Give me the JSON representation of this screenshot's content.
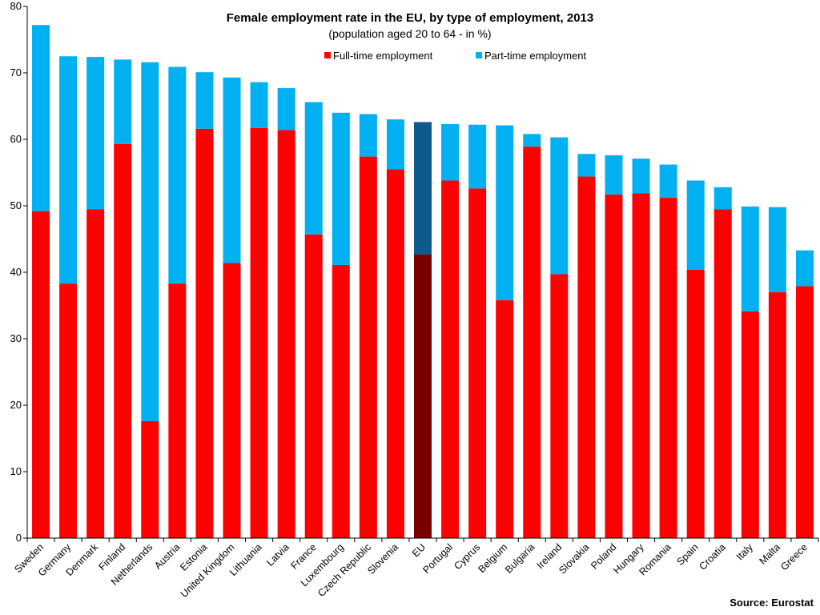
{
  "chart_data": {
    "type": "bar",
    "stacked": true,
    "title": "Female employment rate in the EU, by type of employment, 2013",
    "subtitle": "(population  aged 20 to 64 - in %)",
    "xlabel": "",
    "ylabel": "",
    "ylim": [
      0,
      80
    ],
    "yticks": [
      0,
      10,
      20,
      30,
      40,
      50,
      60,
      70,
      80
    ],
    "grid": false,
    "legend_position": "top",
    "categories": [
      "Sweden",
      "Germany",
      "Denmark",
      "Finland",
      "Netherlands",
      "Austria",
      "Estonia",
      "United Kingdom",
      "Lithuania",
      "Latvia",
      "France",
      "Luxembourg",
      "Czech Republic",
      "Slovenia",
      "EU",
      "Portugal",
      "Cyprus",
      "Belgium",
      "Bulgaria",
      "Ireland",
      "Slovakia",
      "Poland",
      "Hungary",
      "Romania",
      "Spain",
      "Croatia",
      "Italy",
      "Malta",
      "Greece"
    ],
    "highlight_category": "EU",
    "series": [
      {
        "name": "Full-time employment",
        "color": "#ff0000",
        "highlight_color": "#7a0000",
        "values": [
          49.2,
          38.3,
          49.5,
          59.3,
          17.6,
          38.3,
          61.6,
          41.4,
          61.7,
          61.4,
          45.7,
          41.1,
          57.4,
          55.5,
          42.7,
          53.8,
          52.6,
          35.8,
          58.9,
          39.7,
          54.4,
          51.7,
          51.9,
          51.2,
          40.4,
          49.5,
          34.1,
          37.0,
          37.9
        ]
      },
      {
        "name": "Part-time employment",
        "color": "#00b0f0",
        "highlight_color": "#0f5a8c",
        "values": [
          28.0,
          34.2,
          22.9,
          12.7,
          54.0,
          32.6,
          8.5,
          27.9,
          6.9,
          6.3,
          19.9,
          22.9,
          6.4,
          7.5,
          19.9,
          8.5,
          9.6,
          26.3,
          1.9,
          20.6,
          3.4,
          5.9,
          5.2,
          5.0,
          13.4,
          3.3,
          15.8,
          12.8,
          5.4
        ]
      }
    ],
    "source": "Source: Eurostat"
  }
}
